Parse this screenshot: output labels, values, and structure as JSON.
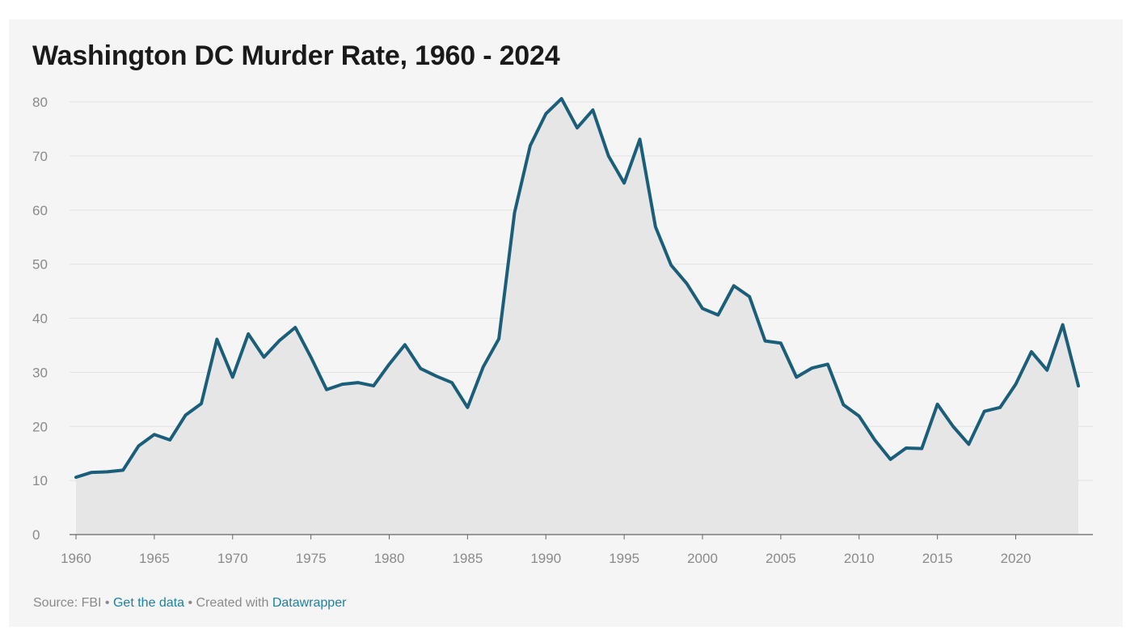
{
  "chart_data": {
    "type": "area",
    "title": "Washington DC Murder Rate, 1960 - 2024",
    "xlabel": "",
    "ylabel": "",
    "xlim": [
      1960,
      2024
    ],
    "ylim": [
      0,
      80
    ],
    "grid": true,
    "legend": "none",
    "x_ticks": [
      1960,
      1965,
      1970,
      1975,
      1980,
      1985,
      1990,
      1995,
      2000,
      2005,
      2010,
      2015,
      2020
    ],
    "y_ticks": [
      0,
      10,
      20,
      30,
      40,
      50,
      60,
      70,
      80
    ],
    "x": [
      1960,
      1961,
      1962,
      1963,
      1964,
      1965,
      1966,
      1967,
      1968,
      1969,
      1970,
      1971,
      1972,
      1973,
      1974,
      1975,
      1976,
      1977,
      1978,
      1979,
      1980,
      1981,
      1982,
      1983,
      1984,
      1985,
      1986,
      1987,
      1988,
      1989,
      1990,
      1991,
      1992,
      1993,
      1994,
      1995,
      1996,
      1997,
      1998,
      1999,
      2000,
      2001,
      2002,
      2003,
      2004,
      2005,
      2006,
      2007,
      2008,
      2009,
      2010,
      2011,
      2012,
      2013,
      2014,
      2015,
      2016,
      2017,
      2018,
      2019,
      2020,
      2021,
      2022,
      2023,
      2024
    ],
    "series": [
      {
        "values": [
          10.6,
          11.5,
          11.6,
          11.9,
          16.4,
          18.5,
          17.5,
          22.1,
          24.2,
          36.1,
          29.1,
          37.1,
          32.8,
          35.9,
          38.3,
          32.8,
          26.8,
          27.8,
          28.1,
          27.5,
          31.5,
          35.1,
          30.7,
          29.3,
          28.1,
          23.5,
          31.0,
          36.2,
          59.5,
          71.9,
          77.8,
          80.6,
          75.2,
          78.5,
          70.0,
          65.0,
          73.1,
          56.9,
          49.8,
          46.4,
          41.8,
          40.6,
          46.0,
          44.0,
          35.8,
          35.4,
          29.1,
          30.8,
          31.5,
          24.0,
          21.9,
          17.5,
          13.9,
          16.0,
          15.9,
          24.1,
          20.0,
          16.7,
          22.8,
          23.5,
          27.8,
          33.8,
          30.4,
          38.8,
          27.5
        ],
        "color": "#1a5e7a"
      }
    ],
    "area_fill": "#e6e6e6"
  },
  "footer": {
    "source": "Source: FBI",
    "separator1": " • ",
    "get_data": "Get the data",
    "separator2": " • Created with ",
    "datawrapper": "Datawrapper"
  }
}
